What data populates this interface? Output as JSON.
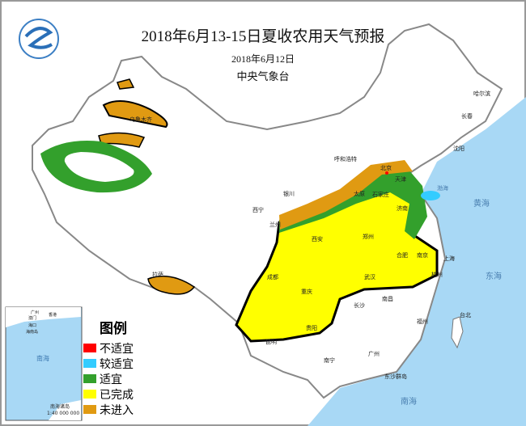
{
  "title": "2018年6月13-15日夏收农用天气预报",
  "date": "2018年6月12日",
  "issuer": "中央气象台",
  "legend": {
    "title": "图例",
    "items": [
      {
        "label": "不适宜",
        "color": "#ff0000"
      },
      {
        "label": "较适宜",
        "color": "#33ccff"
      },
      {
        "label": "适宜",
        "color": "#33a02c"
      },
      {
        "label": "已完成",
        "color": "#ffff00"
      },
      {
        "label": "未进入",
        "color": "#e09a12"
      }
    ]
  },
  "inset": {
    "caption": "南海诸岛",
    "scale": "1:40 000 000",
    "sea": "南海",
    "cities": [
      "广州",
      "香港",
      "澳门",
      "海口",
      "海南岛"
    ]
  },
  "seas": {
    "bohai": "渤海",
    "yellow": "黄海",
    "east": "东海",
    "south": "南海",
    "dongsha": "东沙群岛"
  },
  "cities": [
    "北京",
    "天津",
    "石家庄",
    "太原",
    "济南",
    "郑州",
    "西安",
    "兰州",
    "西宁",
    "银川",
    "呼和浩特",
    "合肥",
    "南京",
    "上海",
    "杭州",
    "武汉",
    "成都",
    "重庆",
    "长沙",
    "南昌",
    "贵阳",
    "昆明",
    "拉萨",
    "沈阳",
    "长春",
    "哈尔滨",
    "福州",
    "台北",
    "广州",
    "南宁",
    "乌鲁木齐"
  ],
  "colors": {
    "ocean": "#a8d8f5",
    "border": "#888888"
  }
}
